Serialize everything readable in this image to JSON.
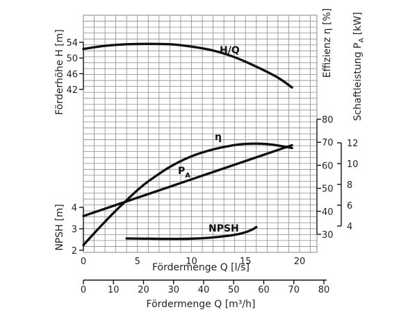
{
  "chart_data": {
    "type": "line",
    "grid": true,
    "x_axes": [
      {
        "id": "q_ls",
        "label": "Fördermenge Q [l/s]",
        "range": [
          0,
          21.5
        ],
        "ticks": [
          0,
          5,
          10,
          15,
          20
        ]
      },
      {
        "id": "q_m3h",
        "label": "Fördermenge Q [m³/h]",
        "range": [
          0,
          80
        ],
        "ticks": [
          0,
          10,
          20,
          30,
          40,
          50,
          60,
          70,
          80
        ]
      }
    ],
    "y_axes": [
      {
        "id": "head",
        "label": "Förderhöhe H [m]",
        "side": "left",
        "range": [
          42,
          54
        ],
        "ticks": [
          42,
          46,
          50,
          54
        ]
      },
      {
        "id": "npsh",
        "label": "NPSH [m]",
        "side": "left",
        "range": [
          2,
          4
        ],
        "ticks": [
          2,
          3,
          4
        ]
      },
      {
        "id": "eff",
        "label": "Effizienz η [%]",
        "side": "right",
        "range": [
          30,
          80
        ],
        "ticks": [
          30,
          40,
          50,
          60,
          70,
          80
        ]
      },
      {
        "id": "power",
        "label": "Schaftleistung P_A [kW]",
        "side": "right",
        "range": [
          4,
          12
        ],
        "ticks": [
          4,
          6,
          8,
          10,
          12
        ]
      }
    ],
    "series": [
      {
        "name": "H/Q",
        "axis": "head",
        "x": [
          0,
          2,
          4,
          6,
          8,
          10,
          12,
          14,
          16,
          18,
          19.3
        ],
        "y": [
          52.3,
          53.1,
          53.5,
          53.6,
          53.5,
          52.9,
          51.9,
          50.2,
          47.8,
          45.0,
          42.5
        ]
      },
      {
        "name": "η",
        "axis": "eff",
        "x": [
          0,
          1,
          2,
          3,
          4,
          5,
          6,
          8,
          10,
          12,
          14,
          15,
          16,
          17,
          18,
          19.3
        ],
        "y": [
          25.3,
          30.5,
          35.5,
          40.3,
          44.8,
          49.2,
          53.0,
          59.3,
          63.9,
          66.9,
          68.8,
          69.3,
          69.4,
          69.2,
          68.6,
          67.5
        ]
      },
      {
        "name": "P_A",
        "axis": "power",
        "x": [
          0,
          19.3
        ],
        "y": [
          4.96,
          11.77
        ]
      },
      {
        "name": "NPSH",
        "axis": "npsh",
        "x": [
          4,
          6,
          8,
          10,
          12,
          14,
          15,
          15.6,
          16
        ],
        "y": [
          2.55,
          2.54,
          2.53,
          2.54,
          2.6,
          2.72,
          2.84,
          2.96,
          3.08
        ]
      }
    ],
    "labels": {
      "head": "H/Q",
      "eff": "η",
      "power_main": "P",
      "power_sub": "A",
      "npsh": "NPSH"
    },
    "axis_titles": {
      "head": "Förderhöhe H [m]",
      "npsh": "NPSH [m]",
      "eff": "Effizienz η [%]",
      "power_main": "Schaftleistung P",
      "power_sub": "A",
      "power_unit": " [kW]",
      "q_ls": "Fördermenge Q [l/s]",
      "q_m3h": "Fördermenge Q [m³/h]"
    }
  }
}
